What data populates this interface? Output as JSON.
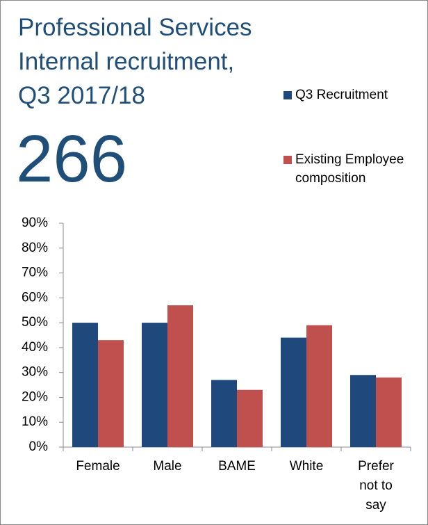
{
  "chart_data": {
    "type": "bar",
    "title": [
      "Professional Services",
      "Internal recruitment,",
      "Q3 2017/18"
    ],
    "headline": "266",
    "categories": [
      "Female",
      "Male",
      "BAME",
      "White",
      "Prefer not to say"
    ],
    "series": [
      {
        "name": "Q3 Recruitment",
        "color": "#1f497d",
        "values": [
          50,
          50,
          27,
          44,
          29
        ]
      },
      {
        "name": "Existing Employee composition",
        "color": "#c0504d",
        "values": [
          43,
          57,
          23,
          49,
          28
        ]
      }
    ],
    "ylim": [
      0,
      90
    ],
    "yticks": [
      {
        "value": 0,
        "label": "0%"
      },
      {
        "value": 10,
        "label": "10%"
      },
      {
        "value": 20,
        "label": "20%"
      },
      {
        "value": 30,
        "label": "30%"
      },
      {
        "value": 40,
        "label": "40%"
      },
      {
        "value": 50,
        "label": "50%"
      },
      {
        "value": 60,
        "label": "60%"
      },
      {
        "value": 70,
        "label": "70%"
      },
      {
        "value": 80,
        "label": "80%"
      },
      {
        "value": 90,
        "label": "90%"
      }
    ],
    "grid": false,
    "legend": "top-right"
  }
}
